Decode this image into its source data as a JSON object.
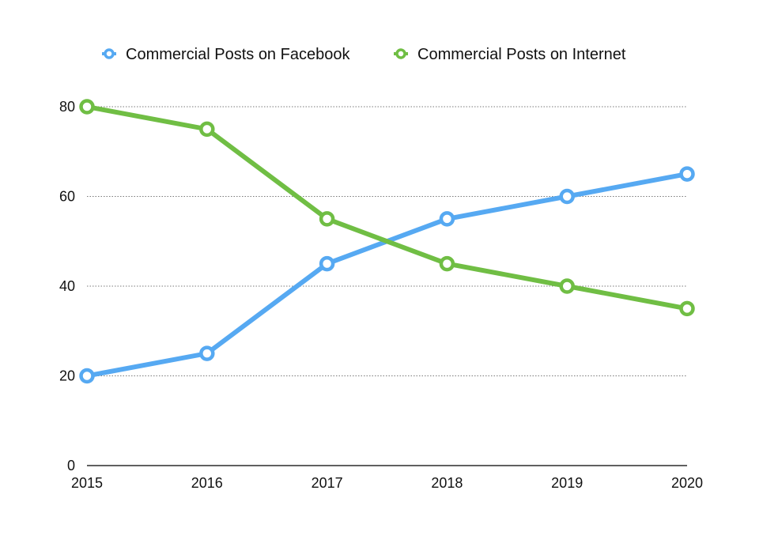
{
  "chart_data": {
    "type": "line",
    "title": "",
    "xlabel": "",
    "ylabel": "",
    "x": [
      "2015",
      "2016",
      "2017",
      "2018",
      "2019",
      "2020"
    ],
    "ylim": [
      0,
      80
    ],
    "yticks": [
      0,
      20,
      40,
      60,
      80
    ],
    "grid": true,
    "legend_position": "top-center",
    "series": [
      {
        "name": "Commercial Posts on Facebook",
        "color": "#56a9f2",
        "values": [
          20,
          25,
          45,
          55,
          60,
          65
        ]
      },
      {
        "name": "Commercial Posts on Internet",
        "color": "#70be44",
        "values": [
          80,
          75,
          55,
          45,
          40,
          35
        ]
      }
    ]
  }
}
